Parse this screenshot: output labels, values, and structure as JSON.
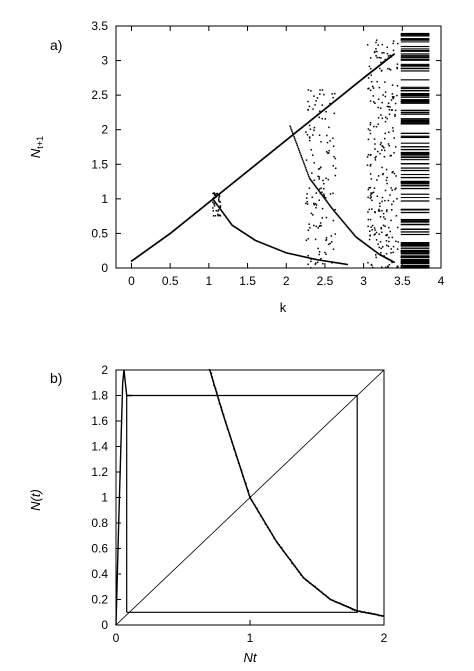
{
  "chart_data": [
    {
      "panel_label": "a)",
      "type": "scatter",
      "xlabel": "k",
      "ylabel_main": "N",
      "ylabel_sub": "t+1",
      "xlim": [
        -0.2,
        4
      ],
      "ylim": [
        0,
        3.5
      ],
      "xticks": [
        "0",
        "0.5",
        "1",
        "1.5",
        "2",
        "2.5",
        "3",
        "3.5",
        "4"
      ],
      "yticks": [
        "0",
        "0.5",
        "1",
        "1.5",
        "2",
        "2.5",
        "3",
        "3.5"
      ],
      "grid": false,
      "series": [
        {
          "values": [
            [
              0.0,
              0.1
            ],
            [
              0.5,
              0.5
            ],
            [
              1.0,
              0.95
            ],
            [
              1.5,
              1.4
            ],
            [
              2.0,
              1.85
            ],
            [
              2.5,
              2.3
            ],
            [
              3.0,
              2.75
            ],
            [
              3.4,
              3.1
            ]
          ]
        },
        {
          "values": [
            [
              1.05,
              1.0
            ],
            [
              1.3,
              0.62
            ],
            [
              1.6,
              0.4
            ],
            [
              2.0,
              0.22
            ],
            [
              2.4,
              0.12
            ],
            [
              2.8,
              0.05
            ]
          ]
        },
        {
          "values": [
            [
              2.05,
              2.05
            ],
            [
              2.3,
              1.3
            ],
            [
              2.6,
              0.85
            ],
            [
              2.9,
              0.45
            ],
            [
              3.2,
              0.2
            ],
            [
              3.4,
              0.08
            ]
          ]
        },
        {
          "values": [
            [
              2.6,
              2.6
            ],
            [
              2.5,
              1.6
            ],
            [
              2.4,
              0.8
            ],
            [
              2.3,
              0.1
            ],
            [
              3.3,
              3.3
            ],
            [
              3.2,
              2.0
            ],
            [
              3.1,
              0.3
            ]
          ]
        }
      ]
    },
    {
      "panel_label": "b)",
      "type": "line",
      "xlabel": "Nt",
      "ylabel": "N(t)",
      "xlim": [
        0,
        2
      ],
      "ylim": [
        0,
        2
      ],
      "xticks": [
        "0",
        "1",
        "2"
      ],
      "yticks": [
        "0",
        "0.2",
        "0.4",
        "0.6",
        "0.8",
        "1",
        "1.2",
        "1.4",
        "1.6",
        "1.8",
        "2"
      ],
      "grid": false,
      "series": [
        {
          "values": [
            [
              0.0,
              0.0
            ],
            [
              2.0,
              2.0
            ]
          ]
        },
        {
          "values": [
            [
              0.7,
              2.0
            ],
            [
              0.8,
              1.65
            ],
            [
              1.0,
              1.0
            ],
            [
              1.2,
              0.65
            ],
            [
              1.4,
              0.37
            ],
            [
              1.6,
              0.2
            ],
            [
              1.8,
              0.11
            ],
            [
              2.0,
              0.07
            ]
          ]
        },
        {
          "values": [
            [
              0.0,
              0.0
            ],
            [
              0.02,
              0.8
            ],
            [
              0.05,
              1.9
            ],
            [
              0.06,
              2.0
            ],
            [
              0.08,
              1.8
            ],
            [
              0.1,
              1.8
            ],
            [
              0.12,
              1.8
            ]
          ]
        },
        {
          "values": [
            [
              0.08,
              0.1
            ],
            [
              0.08,
              1.8
            ],
            [
              1.8,
              1.8
            ],
            [
              1.8,
              0.1
            ],
            [
              0.08,
              0.1
            ]
          ]
        }
      ]
    }
  ]
}
